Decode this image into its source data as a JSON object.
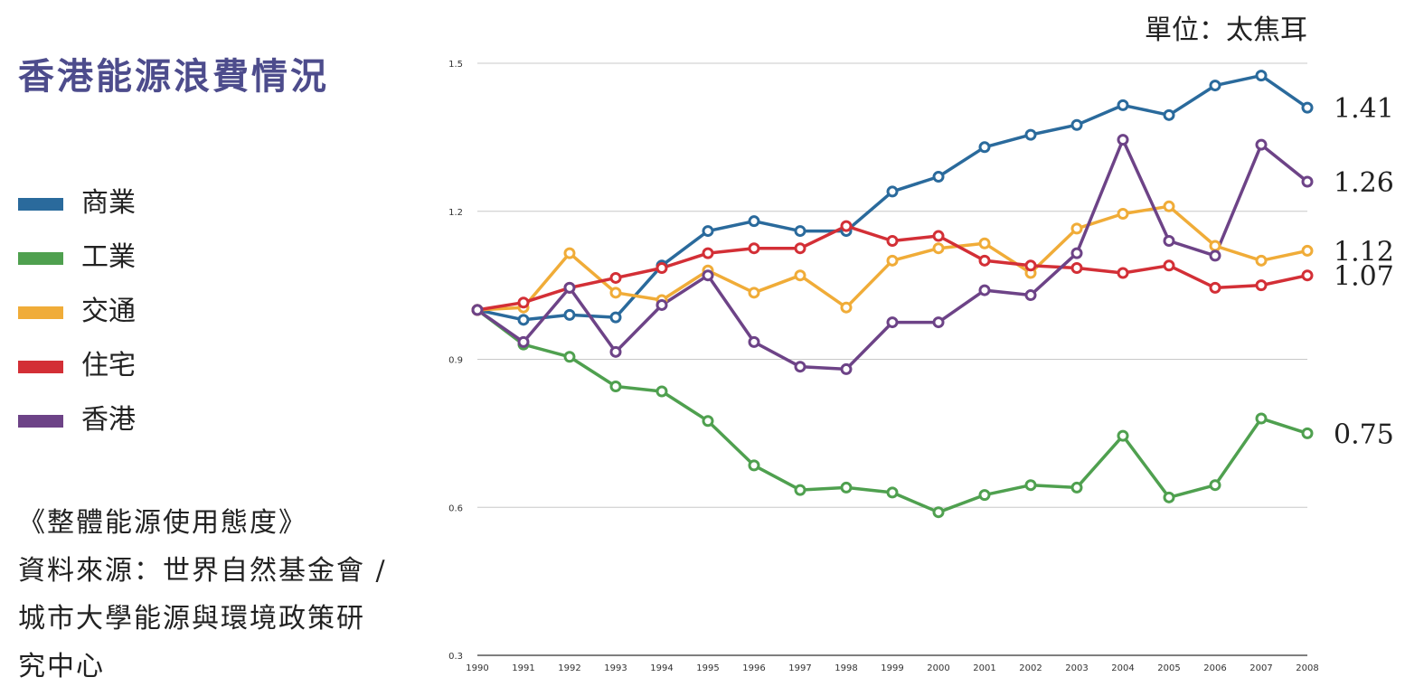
{
  "title": "香港能源浪費情況",
  "unit_label": "單位：太焦耳",
  "legend": [
    {
      "label": "商業",
      "color": "#2a6a9c"
    },
    {
      "label": "工業",
      "color": "#4fa04f"
    },
    {
      "label": "交通",
      "color": "#f0ac38"
    },
    {
      "label": "住宅",
      "color": "#d32f36"
    },
    {
      "label": "香港",
      "color": "#6d4387"
    }
  ],
  "source": {
    "line1": "《整體能源使用態度》",
    "line2": "資料來源：世界自然基金會 /",
    "line3": "城市大學能源與環境政策研",
    "line4": "究中心"
  },
  "chart_data": {
    "type": "line",
    "title": "香港能源浪費情況",
    "xlabel": "",
    "ylabel": "單位：太焦耳",
    "x": [
      "1990",
      "1991",
      "1992",
      "1993",
      "1994",
      "1995",
      "1996",
      "1997",
      "1998",
      "1999",
      "2000",
      "2001",
      "2002",
      "2003",
      "2004",
      "2005",
      "2006",
      "2007",
      "2008"
    ],
    "ylim": [
      0.3,
      1.5
    ],
    "yticks": [
      "0.3",
      "0.6",
      "0.9",
      "1.2",
      "1.5"
    ],
    "grid": true,
    "series": [
      {
        "name": "商業",
        "color": "#2a6a9c",
        "end_label": "1.41",
        "values": [
          1.0,
          0.98,
          0.99,
          0.985,
          1.09,
          1.16,
          1.18,
          1.16,
          1.16,
          1.24,
          1.27,
          1.33,
          1.355,
          1.375,
          1.415,
          1.395,
          1.455,
          1.475,
          1.41
        ]
      },
      {
        "name": "工業",
        "color": "#4fa04f",
        "end_label": "0.75",
        "values": [
          1.0,
          0.93,
          0.905,
          0.845,
          0.835,
          0.775,
          0.685,
          0.635,
          0.64,
          0.63,
          0.59,
          0.625,
          0.645,
          0.64,
          0.745,
          0.62,
          0.645,
          0.78,
          0.75
        ]
      },
      {
        "name": "交通",
        "color": "#f0ac38",
        "end_label": "1.12",
        "values": [
          1.0,
          1.005,
          1.115,
          1.035,
          1.02,
          1.08,
          1.035,
          1.07,
          1.005,
          1.1,
          1.125,
          1.135,
          1.075,
          1.165,
          1.195,
          1.21,
          1.13,
          1.1,
          1.12
        ]
      },
      {
        "name": "住宅",
        "color": "#d32f36",
        "end_label": "1.07",
        "values": [
          1.0,
          1.015,
          1.045,
          1.065,
          1.085,
          1.115,
          1.125,
          1.125,
          1.17,
          1.14,
          1.15,
          1.1,
          1.09,
          1.085,
          1.075,
          1.09,
          1.045,
          1.05,
          1.07
        ]
      },
      {
        "name": "香港",
        "color": "#6d4387",
        "end_label": "1.26",
        "values": [
          1.0,
          0.935,
          1.045,
          0.915,
          1.01,
          1.07,
          0.935,
          0.885,
          0.88,
          0.975,
          0.975,
          1.04,
          1.03,
          1.115,
          1.345,
          1.14,
          1.11,
          1.335,
          1.26
        ]
      }
    ]
  }
}
